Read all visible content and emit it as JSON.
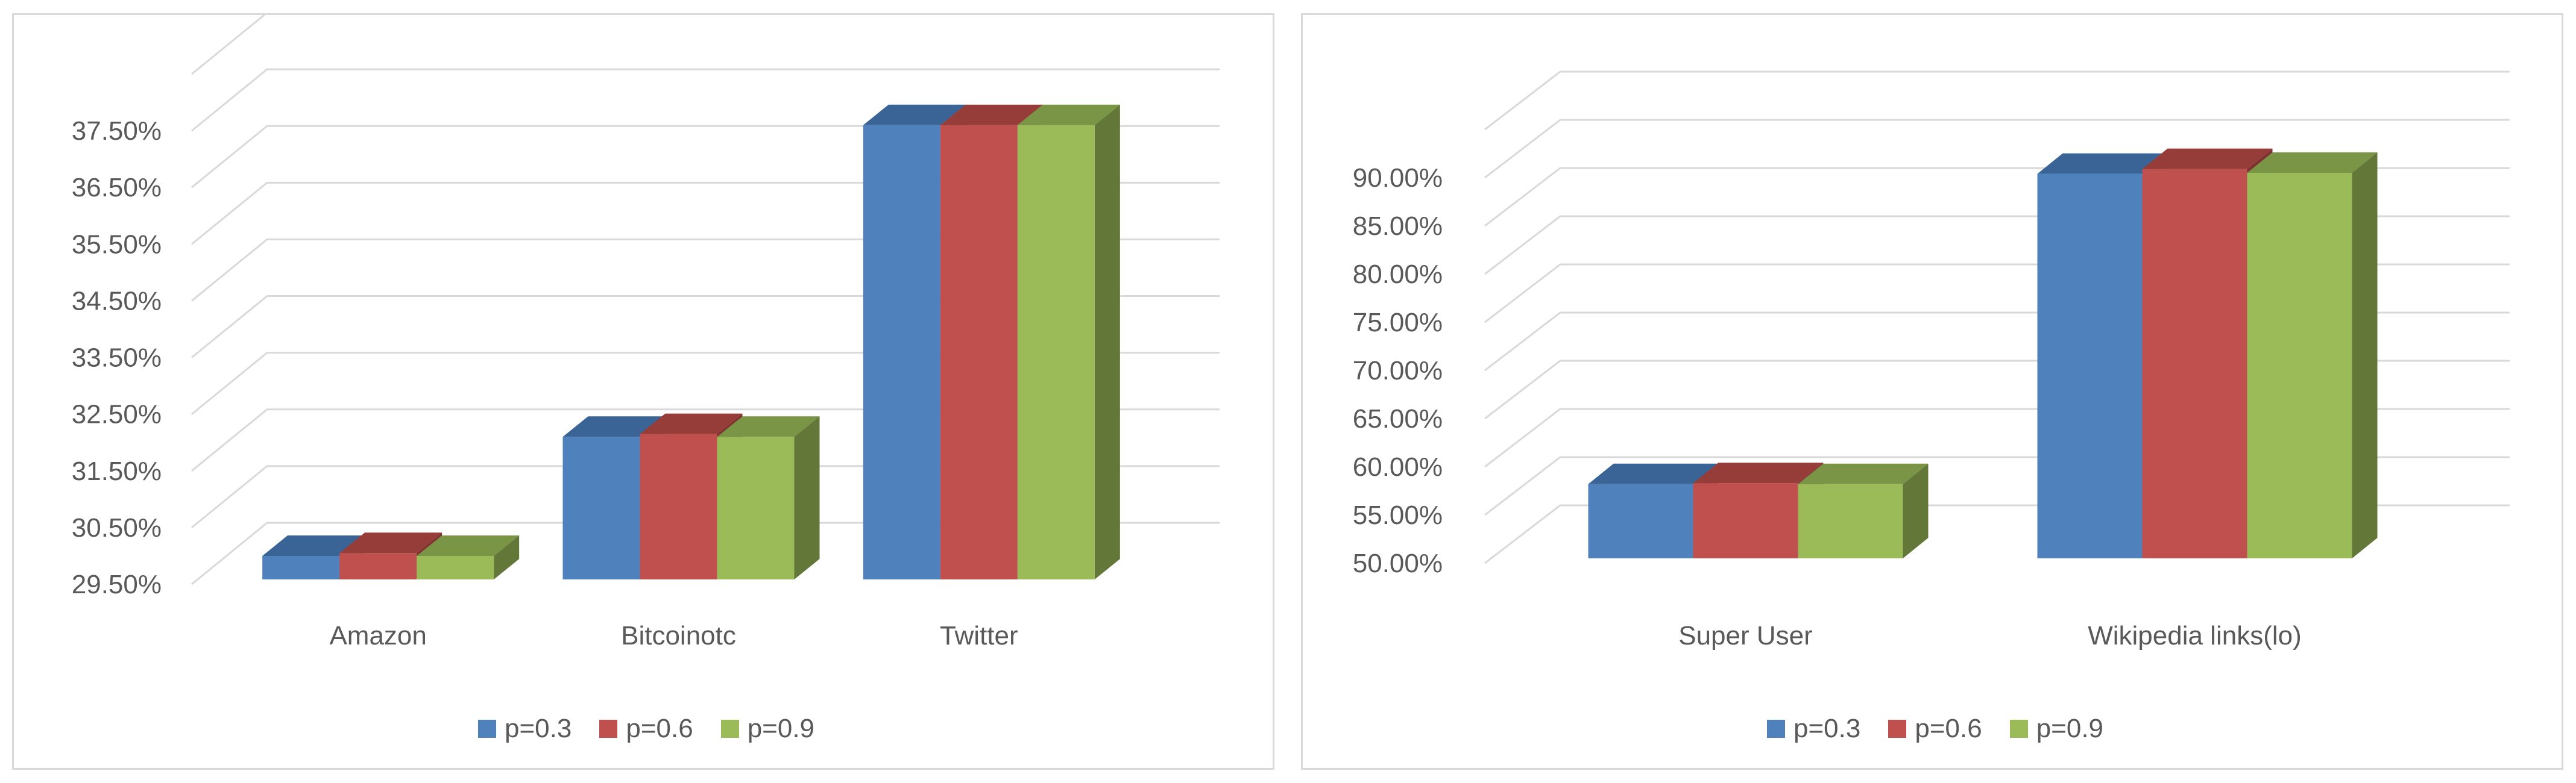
{
  "chart_data": [
    {
      "type": "bar",
      "categories": [
        "Amazon",
        "Bitcoinotc",
        "Twitter"
      ],
      "series": [
        {
          "name": "p=0.3",
          "values": [
            30.0,
            32.1,
            37.6
          ]
        },
        {
          "name": "p=0.6",
          "values": [
            30.05,
            32.15,
            37.6
          ]
        },
        {
          "name": "p=0.9",
          "values": [
            30.0,
            32.1,
            37.6
          ]
        }
      ],
      "ylim": [
        29.5,
        38.5
      ],
      "y_tick_values": [
        29.5,
        30.5,
        31.5,
        32.5,
        33.5,
        34.5,
        35.5,
        36.5,
        37.5
      ],
      "y_tick_labels": [
        "29.50%",
        "30.50%",
        "31.50%",
        "32.50%",
        "33.50%",
        "34.50%",
        "35.50%",
        "36.50%",
        "37.50%"
      ],
      "grid": true,
      "legend_position": "bottom",
      "style": "3d-clustered-column"
    },
    {
      "type": "bar",
      "categories": [
        "Super User",
        "Wikipedia links(lo)"
      ],
      "series": [
        {
          "name": "p=0.3",
          "values": [
            58.2,
            90.4
          ]
        },
        {
          "name": "p=0.6",
          "values": [
            58.3,
            90.9
          ]
        },
        {
          "name": "p=0.9",
          "values": [
            58.2,
            90.5
          ]
        }
      ],
      "ylim": [
        50,
        95
      ],
      "y_tick_values": [
        50,
        55,
        60,
        65,
        70,
        75,
        80,
        85,
        90
      ],
      "y_tick_labels": [
        "50.00%",
        "55.00%",
        "60.00%",
        "65.00%",
        "70.00%",
        "75.00%",
        "80.00%",
        "85.00%",
        "90.00%"
      ],
      "grid": true,
      "legend_position": "bottom",
      "style": "3d-clustered-column"
    }
  ],
  "colors": {
    "series": [
      "#4f81bd",
      "#c0504d",
      "#9bbb59"
    ],
    "series_top": [
      "#3a6496",
      "#963c39",
      "#7a9546"
    ],
    "series_side": [
      "#33567f",
      "#7f322f",
      "#627738"
    ],
    "grid": "#d9d9d9",
    "text": "#595959"
  }
}
